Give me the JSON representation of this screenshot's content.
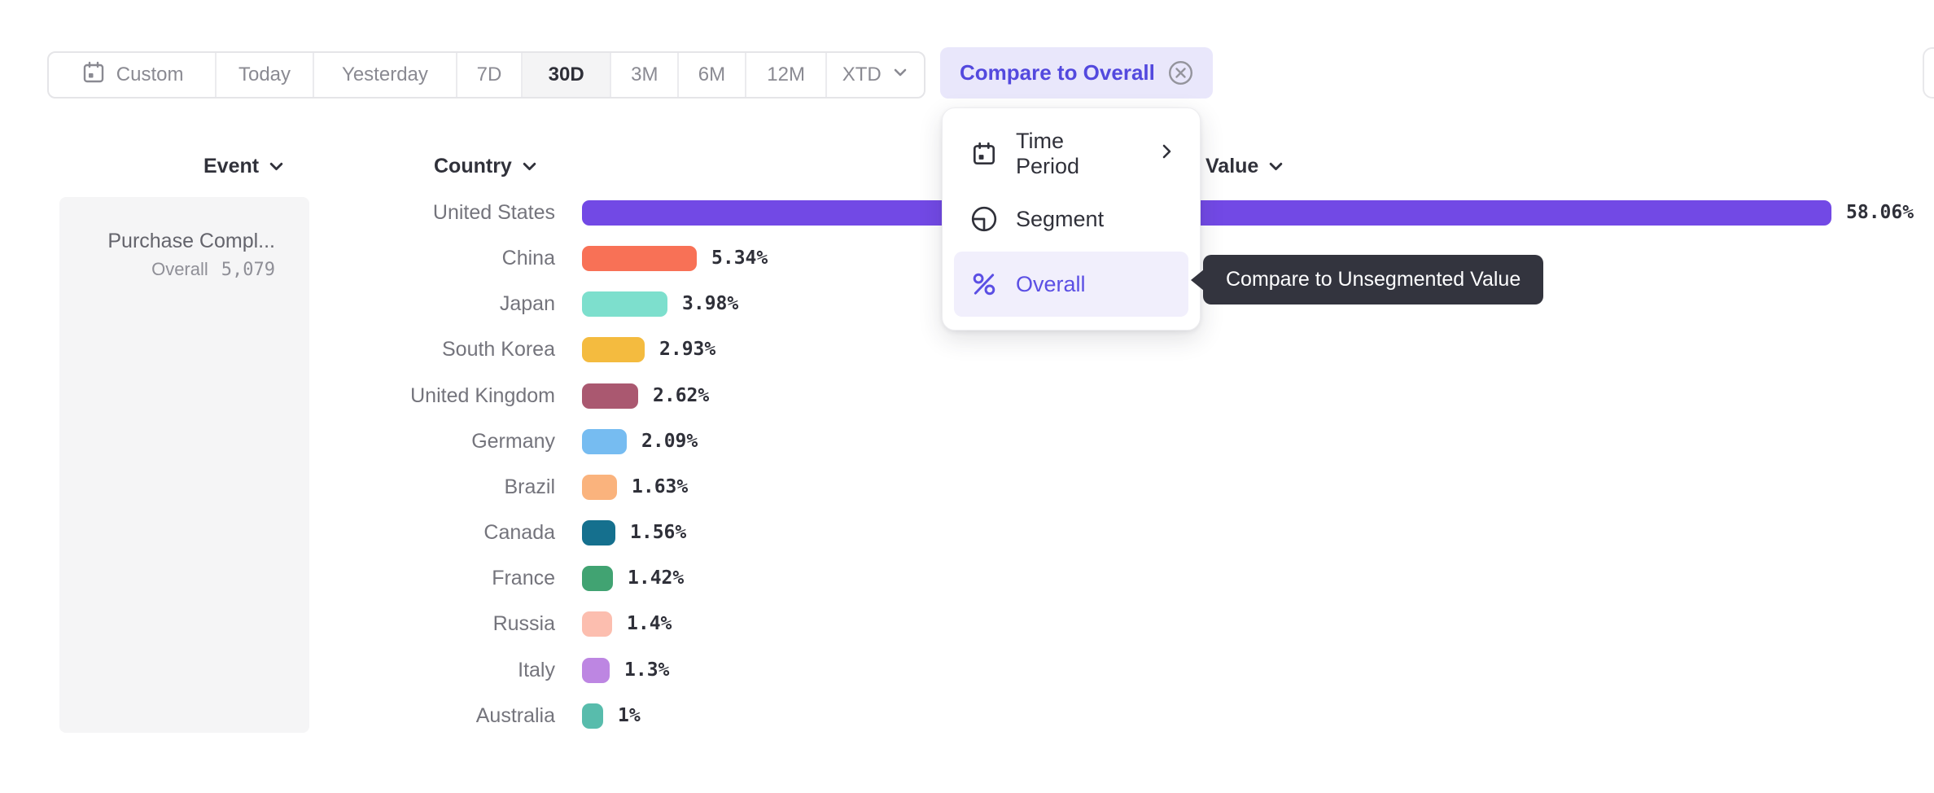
{
  "toolbar": {
    "items": [
      {
        "label": "Custom",
        "icon": "calendar-icon"
      },
      {
        "label": "Today"
      },
      {
        "label": "Yesterday"
      },
      {
        "label": "7D"
      },
      {
        "label": "30D",
        "selected": true
      },
      {
        "label": "3M"
      },
      {
        "label": "6M"
      },
      {
        "label": "12M"
      },
      {
        "label": "XTD",
        "chevron": true
      }
    ],
    "compare_chip_label": "Compare to Overall"
  },
  "menu": {
    "items": [
      {
        "label": "Time Period",
        "icon": "calendar-icon",
        "submenu": true
      },
      {
        "label": "Segment",
        "icon": "segment-icon"
      },
      {
        "label": "Overall",
        "icon": "percent-icon",
        "selected": true
      }
    ]
  },
  "tooltip": {
    "text": "Compare to Unsegmented Value"
  },
  "columns": {
    "event": "Event",
    "country": "Country",
    "value": "Value"
  },
  "event_panel": {
    "event_name": "Purchase Compl...",
    "overall_label": "Overall",
    "overall_value": "5,079"
  },
  "chart_data": {
    "type": "bar",
    "orientation": "horizontal",
    "title": "",
    "xlabel": "",
    "ylabel": "Country",
    "xlim": [
      0,
      58.06
    ],
    "grid": false,
    "categories": [
      "United States",
      "China",
      "Japan",
      "South Korea",
      "United Kingdom",
      "Germany",
      "Brazil",
      "Canada",
      "France",
      "Russia",
      "Italy",
      "Australia"
    ],
    "values": [
      58.06,
      5.34,
      3.98,
      2.93,
      2.62,
      2.09,
      1.63,
      1.56,
      1.42,
      1.4,
      1.3,
      1
    ],
    "labels": [
      "58.06%",
      "5.34%",
      "3.98%",
      "2.93%",
      "2.62%",
      "2.09%",
      "1.63%",
      "1.56%",
      "1.42%",
      "1.4%",
      "1.3%",
      "1%"
    ],
    "colors": [
      "#7249E5",
      "#F87156",
      "#7DDFCD",
      "#F4BB3F",
      "#AA5870",
      "#76BCF1",
      "#FAB37D",
      "#15708E",
      "#41A372",
      "#FCBEAF",
      "#BD86E2",
      "#58BCAC"
    ]
  },
  "theme": {
    "accent_purple": "#5349DE",
    "chip_bg": "#E9E7FB",
    "menu_selected_bg": "#F1EFFC",
    "tooltip_bg": "#33343E",
    "toolbar_text": "#8A8A92",
    "toolbar_selected_text": "#2E2F38",
    "label_gray": "#74747C",
    "value_text": "#2F3039"
  }
}
